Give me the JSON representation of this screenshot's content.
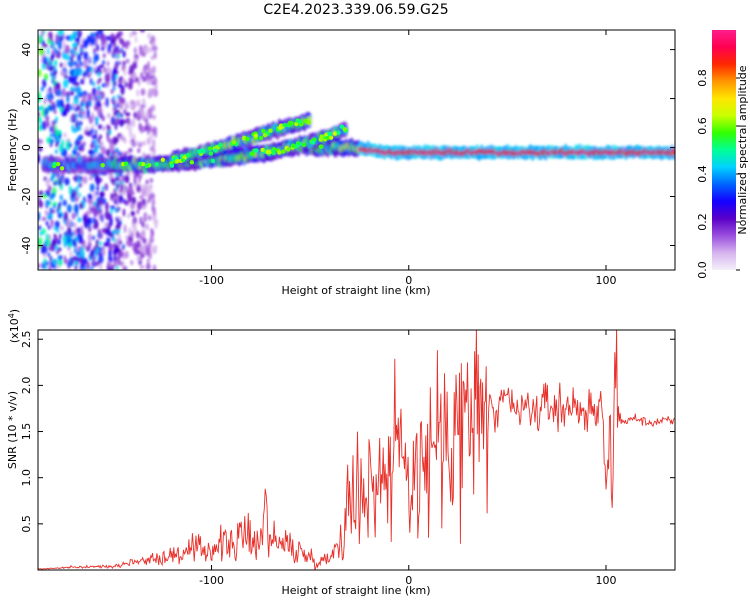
{
  "page": {
    "title": "C2E4.2023.339.06.59.G25"
  },
  "chart_data": [
    {
      "type": "heatmap",
      "xlabel": "Height of straight line (km)",
      "ylabel": "Frequency (Hz)",
      "xlim": [
        -188,
        135
      ],
      "ylim": [
        -50,
        48
      ],
      "x_ticks": [
        -100,
        0,
        100
      ],
      "y_ticks": [
        -40,
        -20,
        0,
        20,
        40
      ],
      "grid": false,
      "colorbar": {
        "label": "Normalized spectral amplitude",
        "range": [
          0,
          1
        ],
        "ticks": [
          "0.0",
          "0.2",
          "0.4",
          "0.6",
          "0.8"
        ],
        "colors": [
          "#f5f0fa",
          "#d6b4ee",
          "#9a4fdd",
          "#5a00c8",
          "#1400ff",
          "#0064ff",
          "#00d2ff",
          "#00ff96",
          "#32ff00",
          "#c8ff00",
          "#ffe600",
          "#ff9600",
          "#ff2800",
          "#ff0050",
          "#ff1e8c"
        ]
      },
      "series": [
        {
          "x": [
            -185,
            -150,
            -130,
            -110,
            -90,
            -70,
            -55,
            -45,
            -38,
            -30,
            -20,
            -10,
            0,
            20,
            60,
            100,
            135
          ],
          "y": [
            -7,
            -7,
            -7,
            -6,
            -4,
            -2,
            1,
            0,
            0,
            0,
            -1,
            -2,
            -2,
            -2,
            -2,
            -2,
            -2
          ]
        },
        {
          "x": [
            -120,
            -100,
            -80,
            -60,
            -50
          ],
          "y": [
            -5,
            -1,
            4,
            9,
            11
          ]
        },
        {
          "x": [
            -80,
            -65,
            -50,
            -40,
            -32
          ],
          "y": [
            -3,
            -1,
            2,
            5,
            7
          ]
        }
      ]
    },
    {
      "type": "line",
      "xlabel": "Height of straight line (km)",
      "ylabel": "SNR (10 * v/v)",
      "y_multiplier": "(x10",
      "y_multiplier_exp": "4",
      "xlim": [
        -188,
        135
      ],
      "ylim": [
        0,
        26000
      ],
      "x_ticks": [
        -100,
        0,
        100
      ],
      "y_ticks": [
        "0.5",
        "1.0",
        "1.5",
        "2.0",
        "2.5"
      ],
      "y_tick_values": [
        5000,
        10000,
        15000,
        20000,
        25000
      ],
      "grid": false,
      "color": "#e8302a",
      "series": [
        {
          "x": [
            -188,
            -170,
            -150,
            -140,
            -130,
            -120,
            -110,
            -100,
            -90,
            -80,
            -75,
            -72,
            -70,
            -60,
            -50,
            -45,
            -40,
            -36,
            -33,
            -30,
            -27,
            -25,
            -22,
            -20,
            -17,
            -15,
            -12,
            -10,
            -7,
            -5,
            -2,
            0,
            5,
            10,
            15,
            20,
            25,
            30,
            35,
            40,
            45,
            50,
            55,
            60,
            65,
            70,
            75,
            80,
            85,
            90,
            95,
            98,
            100,
            102,
            103,
            104,
            105,
            106,
            108,
            110,
            115,
            120,
            125,
            130,
            135
          ],
          "y": [
            100,
            300,
            400,
            900,
            1200,
            1600,
            2000,
            2400,
            3000,
            3600,
            3200,
            7500,
            3300,
            2500,
            1400,
            800,
            1500,
            2800,
            5000,
            8000,
            9000,
            10000,
            8500,
            11000,
            9000,
            11500,
            10000,
            12000,
            13000,
            12500,
            11500,
            11000,
            12500,
            14000,
            15500,
            15000,
            16500,
            17500,
            16500,
            17500,
            16500,
            18500,
            17000,
            17500,
            17000,
            18000,
            17500,
            17500,
            18000,
            17000,
            16500,
            18500,
            9000,
            17000,
            5000,
            17000,
            26000,
            14500,
            16500,
            16000,
            16500,
            16000,
            16000,
            16200,
            16000
          ]
        }
      ]
    }
  ]
}
